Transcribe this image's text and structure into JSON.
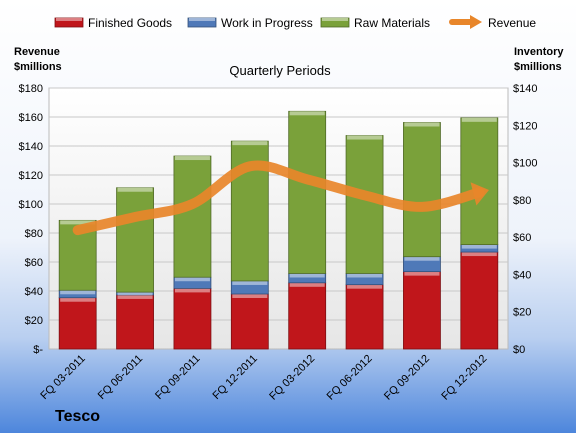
{
  "chart_data": {
    "type": "bar",
    "title": "Quarterly Periods",
    "company": "Tesco",
    "y_left_label": [
      "Revenue",
      "$millions"
    ],
    "y_right_label": [
      "Inventory",
      "$millions"
    ],
    "y_left_range": [
      0,
      180
    ],
    "y_right_range": [
      0,
      140
    ],
    "y_left_ticks": [
      "$-",
      "$20",
      "$40",
      "$60",
      "$80",
      "$100",
      "$120",
      "$140",
      "$160",
      "$180"
    ],
    "y_right_ticks": [
      "$0",
      "$20",
      "$40",
      "$60",
      "$80",
      "$100",
      "$120",
      "$140"
    ],
    "categories": [
      "FQ 03-2011",
      "FQ 06-2011",
      "FQ 09-2011",
      "FQ 12-2011",
      "FQ 03-2012",
      "FQ 06-2012",
      "FQ 09-2012",
      "FQ 12-2012"
    ],
    "stacked": true,
    "bar_axis": "right",
    "series": [
      {
        "name": "Finished Goods",
        "color": "#c0161b",
        "values": [
          27.5,
          29,
          32.5,
          29.5,
          35.5,
          34.5,
          41.5,
          52
        ]
      },
      {
        "name": "Work in Progress",
        "color": "#4f79b8",
        "values": [
          4,
          1.5,
          6,
          7,
          5,
          6,
          8,
          4
        ]
      },
      {
        "name": "Raw Materials",
        "color": "#7aa13a",
        "values": [
          37.5,
          56,
          65,
          75,
          87,
          74,
          72,
          68
        ]
      }
    ],
    "line_series": {
      "name": "Revenue",
      "color": "#e8862a",
      "axis": "left",
      "values": [
        82,
        91,
        100,
        126,
        117,
        106,
        98,
        108
      ]
    },
    "legend_position": "top",
    "grid": true
  }
}
